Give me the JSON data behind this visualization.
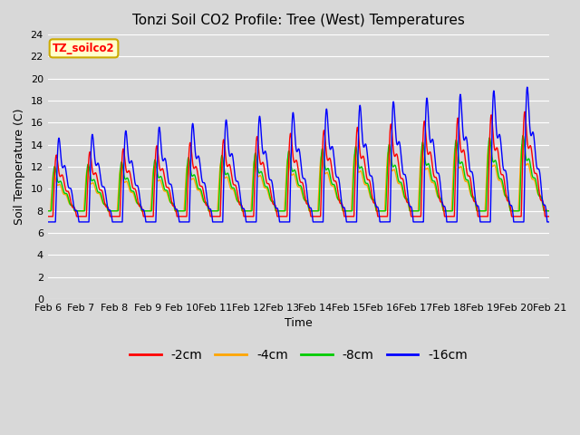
{
  "title": "Tonzi Soil CO2 Profile: Tree (West) Temperatures",
  "xlabel": "Time",
  "ylabel": "Soil Temperature (C)",
  "legend_label": "TZ_soilco2",
  "series_labels": [
    "-2cm",
    "-4cm",
    "-8cm",
    "-16cm"
  ],
  "series_colors": [
    "#ff0000",
    "#ffa500",
    "#00cc00",
    "#0000ff"
  ],
  "ylim": [
    0,
    24
  ],
  "yticks": [
    0,
    2,
    4,
    6,
    8,
    10,
    12,
    14,
    16,
    18,
    20,
    22,
    24
  ],
  "n_days": 15,
  "points_per_day": 240,
  "base_temp": 9.0,
  "base_trend": 0.08,
  "background_color": "#d8d8d8",
  "title_fontsize": 11,
  "axis_fontsize": 9,
  "tick_fontsize": 8,
  "legend_box_facecolor": "#ffffcc",
  "legend_box_edgecolor": "#ccaa00"
}
